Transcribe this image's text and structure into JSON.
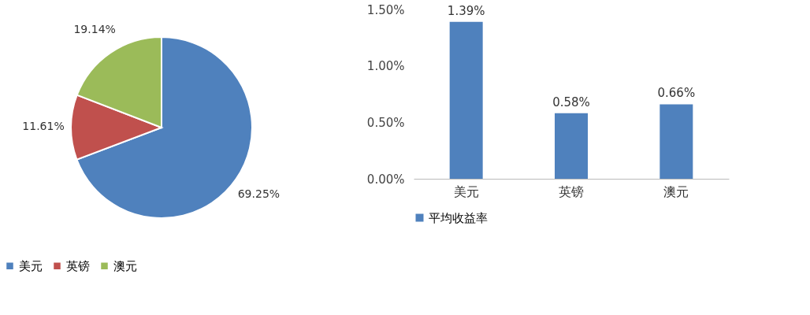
{
  "chart_data": [
    {
      "type": "pie",
      "categories": [
        "美元",
        "英镑",
        "澳元"
      ],
      "values": [
        69.25,
        11.61,
        19.14
      ],
      "colors": [
        "#4f81bd",
        "#c0504d",
        "#9bbb59"
      ],
      "value_labels": [
        "69.25%",
        "11.61%",
        "19.14%"
      ],
      "legend": "bottom"
    },
    {
      "type": "bar",
      "categories": [
        "美元",
        "英镑",
        "澳元"
      ],
      "series": [
        {
          "name": "平均收益率",
          "color": "#4f81bd",
          "values": [
            1.39,
            0.58,
            0.66
          ],
          "value_labels": [
            "1.39%",
            "0.58%",
            "0.66%"
          ]
        }
      ],
      "ylim": [
        0,
        1.5
      ],
      "yticks": [
        {
          "value": 0,
          "label": "0.00%"
        },
        {
          "value": 0.5,
          "label": "0.50%"
        },
        {
          "value": 1.0,
          "label": "1.00%"
        },
        {
          "value": 1.5,
          "label": "1.50%"
        }
      ],
      "grid": false,
      "legend": "bottom"
    }
  ]
}
